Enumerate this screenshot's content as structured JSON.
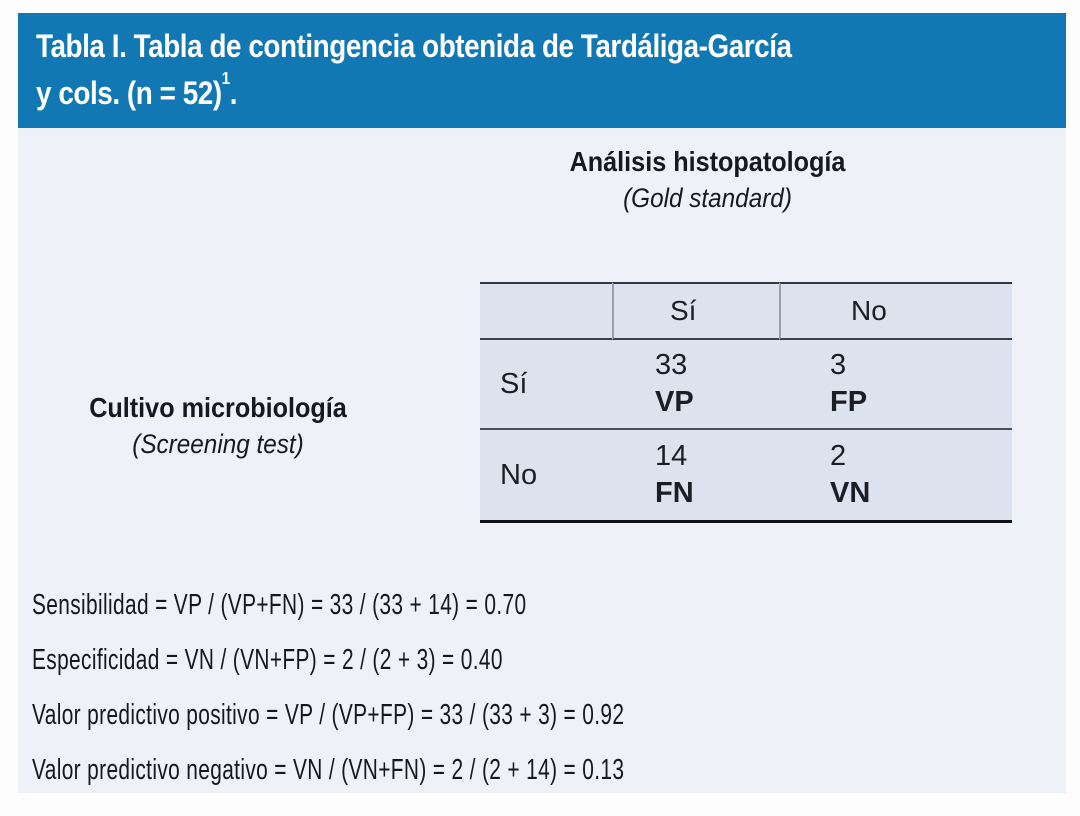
{
  "header": {
    "line1": "Tabla I. Tabla de contingencia obtenida de Tardáliga-García",
    "line2": "y cols. (n = 52)",
    "line2_superscript": "1",
    "line2_suffix": "."
  },
  "column_axis": {
    "title": "Análisis histopatología",
    "subtitle": "(Gold standard)"
  },
  "row_axis": {
    "title": "Cultivo microbiología",
    "subtitle": "(Screening test)"
  },
  "table": {
    "column_headers": [
      "Sí",
      "No"
    ],
    "rows": [
      {
        "label": "Sí",
        "cells": [
          {
            "value": "33",
            "tag": "VP"
          },
          {
            "value": "3",
            "tag": "FP"
          }
        ]
      },
      {
        "label": "No",
        "cells": [
          {
            "value": "14",
            "tag": "FN"
          },
          {
            "value": "2",
            "tag": "VN"
          }
        ]
      }
    ]
  },
  "formulas": [
    {
      "text": "Sensibilidad = VP / (VP+FN) = 33 / (33 + 14) = 0.70"
    },
    {
      "text": "Especificidad = VN / (VN+FP) = 2 / (2 + 3) = 0.40"
    },
    {
      "text": "Valor predictivo positivo = VP / (VP+FP) = 33 / (33 + 3) = 0.92"
    },
    {
      "text": "Valor predictivo negativo = VN / (VN+FN) = 2 / (2 + 14) = 0.13"
    }
  ],
  "colors": {
    "title_bar_bg": "#1278b4",
    "title_text": "#ffffff",
    "panel_bg": "#eef1f8",
    "cell_bg": "#dde2ef",
    "table_line_dark": "#3a3e47",
    "table_bottom_line": "#0e1116",
    "header_divider": "#9aa0b2",
    "body_text": "#1b1e25"
  }
}
